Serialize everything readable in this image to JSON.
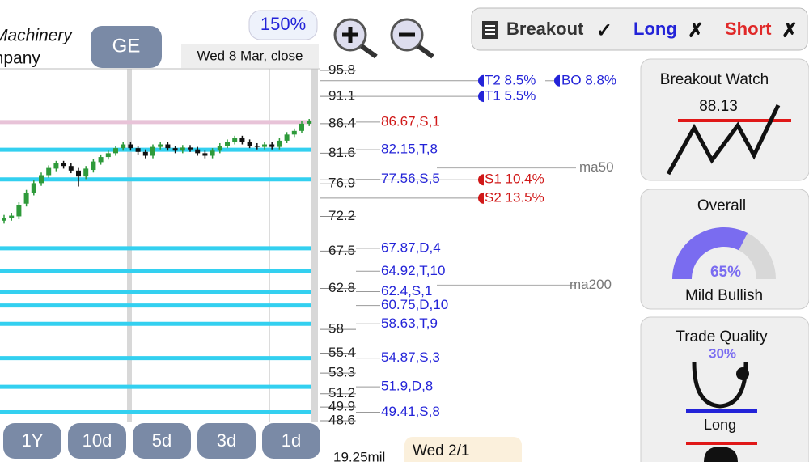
{
  "header": {
    "company_line1": "Machinery",
    "company_line2": "Company",
    "ticker": "GE",
    "zoom": "150%",
    "date": "Wed 8 Mar, close"
  },
  "signals": {
    "breakout": "Breakout",
    "breakout_mark": "✓",
    "long": "Long",
    "long_mark": "✗",
    "short": "Short",
    "short_mark": "✗"
  },
  "periods": [
    "1Y",
    "10d",
    "5d",
    "3d",
    "1d"
  ],
  "volume_label": "19.25mil",
  "tooltip": "Wed 2/1",
  "cards": {
    "breakout_watch": {
      "title": "Breakout Watch",
      "value": "88.13"
    },
    "overall": {
      "title": "Overall",
      "value": 65,
      "value_label": "65%",
      "text": "Mild Bullish"
    },
    "trade_quality": {
      "title": "Trade Quality",
      "value": 30,
      "value_label": "30%",
      "text": "Long"
    }
  },
  "chart_data": {
    "type": "candlestick",
    "log_scale": true,
    "ylim": [
      48.6,
      95.8
    ],
    "yticks": [
      95.8,
      91.1,
      86.4,
      81.6,
      76.9,
      72.2,
      67.5,
      62.8,
      58,
      55.4,
      53.3,
      51.2,
      49.9,
      48.6
    ],
    "open": [
      71.6,
      72.0,
      72.2,
      74.0,
      75.6,
      77.0,
      78.2,
      79.2,
      80.0,
      79.6,
      78.9,
      78.0,
      79.0,
      80.2,
      81.0,
      81.6,
      82.4,
      83.0,
      82.4,
      81.8,
      81.2,
      82.6,
      83.0,
      82.4,
      82.0,
      82.5,
      82.2,
      81.6,
      81.2,
      82.0,
      82.8,
      83.4,
      84.0,
      83.4,
      82.8,
      82.6,
      83.0,
      82.6,
      83.6,
      84.6,
      85.2,
      86.4
    ],
    "high": [
      72.4,
      72.7,
      74.2,
      76.0,
      77.4,
      78.6,
      79.7,
      80.4,
      80.4,
      80.0,
      79.3,
      79.6,
      80.7,
      81.4,
      82.0,
      82.8,
      83.4,
      83.4,
      82.8,
      82.2,
      83.0,
      83.4,
      83.4,
      82.8,
      82.9,
      82.9,
      82.6,
      82.0,
      82.4,
      83.2,
      83.8,
      84.4,
      84.4,
      83.8,
      83.2,
      83.4,
      83.4,
      84.0,
      85.0,
      85.6,
      86.8,
      87.2
    ],
    "low": [
      71.2,
      71.6,
      71.8,
      73.6,
      75.2,
      76.6,
      77.8,
      78.8,
      79.2,
      78.5,
      76.5,
      77.6,
      78.6,
      79.8,
      80.6,
      81.2,
      82.0,
      82.0,
      81.4,
      80.8,
      80.8,
      82.2,
      82.0,
      81.6,
      81.6,
      81.8,
      81.2,
      80.8,
      80.8,
      81.6,
      82.4,
      83.0,
      83.0,
      82.4,
      82.2,
      82.2,
      82.2,
      82.2,
      83.2,
      84.2,
      84.8,
      86.0
    ],
    "close": [
      72.0,
      72.3,
      73.8,
      75.6,
      77.0,
      78.2,
      79.3,
      80.0,
      79.6,
      78.9,
      78.0,
      79.2,
      80.3,
      81.0,
      81.6,
      82.4,
      83.0,
      82.4,
      81.8,
      81.2,
      82.6,
      83.0,
      82.4,
      82.0,
      82.5,
      82.2,
      81.6,
      81.2,
      82.0,
      82.8,
      83.4,
      84.0,
      83.4,
      82.8,
      82.6,
      83.0,
      82.6,
      83.6,
      84.6,
      85.2,
      86.4,
      86.8
    ],
    "up_color": "#2e9a3a",
    "down_color": "#111111",
    "levels": [
      {
        "value": 86.67,
        "label": "86.67,S,1",
        "color": "#e8c3d8",
        "text_color": "#d01818"
      },
      {
        "value": 82.15,
        "label": "82.15,T,8",
        "color": "#33d0f0",
        "text_color": "#2323d8"
      },
      {
        "value": 77.56,
        "label": "77.56,S,5",
        "color": "#33d0f0",
        "text_color": "#2323d8"
      },
      {
        "value": 67.87,
        "label": "67.87,D,4",
        "color": "#33d0f0",
        "text_color": "#2323d8"
      },
      {
        "value": 64.92,
        "label": "64.92,T,10",
        "color": "#33d0f0",
        "text_color": "#2323d8"
      },
      {
        "value": 62.4,
        "label": "62.4,S,1",
        "color": "#33d0f0",
        "text_color": "#2323d8"
      },
      {
        "value": 60.75,
        "label": "60.75,D,10",
        "color": "#33d0f0",
        "text_color": "#2323d8"
      },
      {
        "value": 58.63,
        "label": "58.63,T,9",
        "color": "#33d0f0",
        "text_color": "#2323d8"
      },
      {
        "value": 54.87,
        "label": "54.87,S,3",
        "color": "#33d0f0",
        "text_color": "#2323d8"
      },
      {
        "value": 51.9,
        "label": "51.9,D,8",
        "color": "#33d0f0",
        "text_color": "#2323d8"
      },
      {
        "value": 49.41,
        "label": "49.41,S,8",
        "color": "#33d0f0",
        "text_color": "#2323d8"
      }
    ],
    "targets": [
      {
        "value": 93.9,
        "label": "T2 8.5%",
        "color": "#2323d8"
      },
      {
        "value": 91.1,
        "label": "T1 5.5%",
        "color": "#2323d8"
      },
      {
        "value": 77.5,
        "label": "S1 10.4%",
        "color": "#d01818"
      },
      {
        "value": 74.8,
        "label": "S2 13.5%",
        "color": "#d01818"
      }
    ],
    "breakout_target": {
      "label": "BO 8.8%",
      "color": "#2323d8"
    },
    "ma": [
      {
        "value": 79.3,
        "label": "ma50"
      },
      {
        "value": 63.2,
        "label": "ma200"
      }
    ]
  }
}
